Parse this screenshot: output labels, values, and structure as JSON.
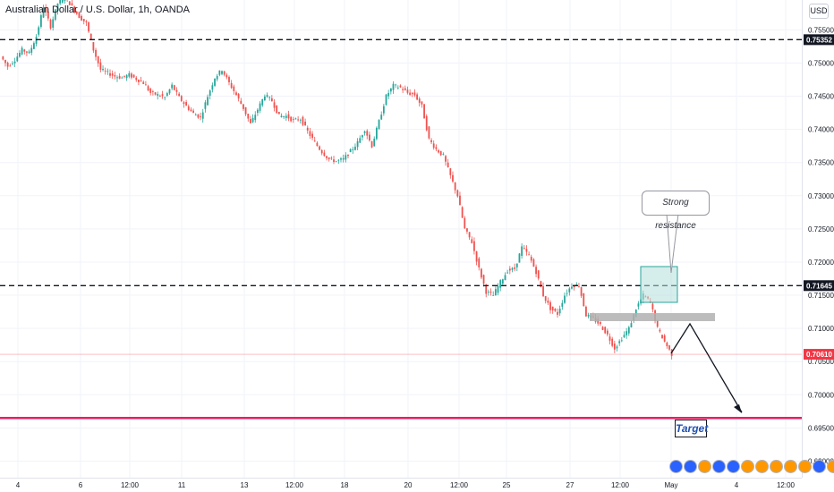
{
  "header": {
    "title": "Australian Dollar / U.S. Dollar, 1h, OANDA",
    "currency_button": "USD"
  },
  "annotations": {
    "callout": "Strong resistance",
    "target": "Target"
  },
  "colors": {
    "up": "#26a69a",
    "down": "#ef5350",
    "target_line": "#e91e63",
    "current_badge": "#f23645",
    "zone_fill": "#b2dfdb",
    "zone_border": "#26a69a",
    "gray_zone": "#b0b0b0"
  },
  "events": {
    "icons": [
      "calendar-icon",
      "calendar-icon",
      "flag-icon",
      "calendar-icon",
      "calendar-icon",
      "flag-icon",
      "flag-icon",
      "flag-icon",
      "flag-icon",
      "flag-icon",
      "calendar-icon",
      "flag-icon",
      "flag-icon",
      "flag-icon"
    ]
  },
  "chart_data": {
    "type": "candlestick",
    "title": "Australian Dollar / U.S. Dollar, 1h, OANDA",
    "ylim": [
      0.6875,
      0.7595
    ],
    "y_ticks": [
      "0.75500",
      "0.75000",
      "0.74500",
      "0.74000",
      "0.73500",
      "0.73000",
      "0.72500",
      "0.72000",
      "0.71500",
      "0.71000",
      "0.70500",
      "0.70000",
      "0.69500",
      "0.69000"
    ],
    "x_ticks": [
      "4",
      "6",
      "12:00",
      "11",
      "13",
      "12:00",
      "18",
      "20",
      "12:00",
      "25",
      "27",
      "12:00",
      "May",
      "4",
      "12:00"
    ],
    "horizontal_levels": [
      {
        "value": 0.75352,
        "label": "0.75352",
        "style": "dashed"
      },
      {
        "value": 0.71645,
        "label": "0.71645",
        "style": "dashed"
      },
      {
        "value": 0.7061,
        "label": "0.70610",
        "style": "current"
      },
      {
        "value": 0.6965,
        "label": "",
        "style": "target"
      }
    ],
    "close_path": [
      0.751,
      0.7495,
      0.7505,
      0.752,
      0.7515,
      0.754,
      0.7585,
      0.7555,
      0.759,
      0.76,
      0.7585,
      0.757,
      0.756,
      0.752,
      0.749,
      0.7485,
      0.748,
      0.7478,
      0.7482,
      0.7476,
      0.747,
      0.7455,
      0.7452,
      0.7448,
      0.7466,
      0.7448,
      0.7435,
      0.7424,
      0.7418,
      0.745,
      0.7478,
      0.749,
      0.747,
      0.7452,
      0.7432,
      0.7408,
      0.743,
      0.7452,
      0.7443,
      0.742,
      0.742,
      0.7413,
      0.7416,
      0.7397,
      0.738,
      0.7366,
      0.7355,
      0.7352,
      0.7355,
      0.7367,
      0.738,
      0.74,
      0.7375,
      0.7412,
      0.745,
      0.7466,
      0.7463,
      0.7455,
      0.7452,
      0.7435,
      0.7385,
      0.737,
      0.736,
      0.733,
      0.73,
      0.725,
      0.723,
      0.719,
      0.7155,
      0.715,
      0.717,
      0.7187,
      0.719,
      0.7222,
      0.721,
      0.7185,
      0.715,
      0.713,
      0.7122,
      0.715,
      0.7165,
      0.7165,
      0.712,
      0.7115,
      0.7105,
      0.709,
      0.707,
      0.7085,
      0.71,
      0.713,
      0.715,
      0.714,
      0.71,
      0.708,
      0.7061
    ]
  }
}
